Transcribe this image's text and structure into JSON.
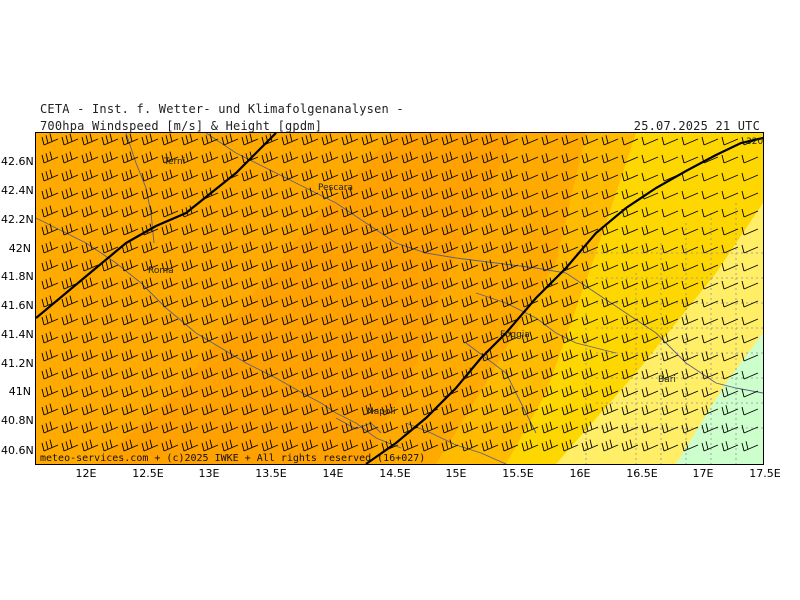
{
  "header": {
    "institute": "CETA - Inst. f. Wetter- und Klimafolgenanalysen -",
    "product": "700hpa Windspeed [m/s] & Height [gpdm]",
    "timestamp": "25.07.2025 21 UTC"
  },
  "footer": {
    "credit": "meteo-services.com + (c)2025 IWKE + All rights reserved (16+027)"
  },
  "axes": {
    "y_labels": [
      "42.6N",
      "42.4N",
      "42.2N",
      "42N",
      "41.8N",
      "41.6N",
      "41.4N",
      "41.2N",
      "41N",
      "40.8N",
      "40.6N"
    ],
    "x_labels": [
      "12E",
      "12.5E",
      "13E",
      "13.5E",
      "14E",
      "14.5E",
      "15E",
      "15.5E",
      "16E",
      "16.5E",
      "17E",
      "17.5E"
    ]
  },
  "cities": [
    {
      "name": "Terni"
    },
    {
      "name": "Pescara"
    },
    {
      "name": "Roma"
    },
    {
      "name": "Foggia"
    },
    {
      "name": "Bari"
    },
    {
      "name": "Napoli"
    }
  ],
  "contour_label": "320",
  "colors": {
    "band_dark": "#ff9900",
    "band_orange": "#ffaa00",
    "band_orange_light": "#ffbb00",
    "band_yellow": "#ffd700",
    "band_light_yellow": "#ffee66",
    "band_green": "#ccffcc",
    "contour": "#000000",
    "border": "#606080"
  },
  "map_data": {
    "lon_range": [
      11.6,
      17.5
    ],
    "lat_range": [
      40.5,
      42.75
    ]
  }
}
